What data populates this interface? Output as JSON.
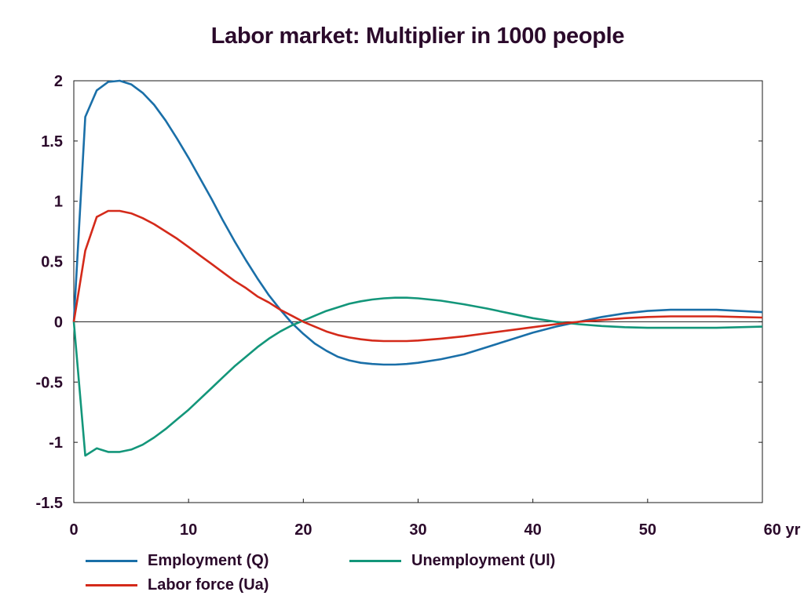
{
  "chart_data": {
    "type": "line",
    "title": "Labor market: Multiplier in 1000 people",
    "xlabel": "",
    "ylabel": "",
    "x_unit_label": "yr",
    "xlim": [
      0,
      60
    ],
    "ylim": [
      -1.5,
      2
    ],
    "x_ticks": [
      0,
      10,
      20,
      30,
      40,
      50,
      60
    ],
    "y_ticks": [
      -1.5,
      -1,
      -0.5,
      0,
      0.5,
      1,
      1.5,
      2
    ],
    "x_tick_labels": [
      "0",
      "10",
      "20",
      "30",
      "40",
      "50",
      "60 yr"
    ],
    "y_tick_labels": [
      "-1.5",
      "-1",
      "-0.5",
      "0",
      "0.5",
      "1",
      "1.5",
      "2"
    ],
    "grid": false,
    "legend_position": "bottom",
    "zero_line": true,
    "series": [
      {
        "name": "Employment (Q)",
        "color": "#1a6fa8",
        "x": [
          0,
          1,
          2,
          3,
          4,
          5,
          6,
          7,
          8,
          9,
          10,
          11,
          12,
          13,
          14,
          15,
          16,
          17,
          18,
          19,
          20,
          21,
          22,
          23,
          24,
          25,
          26,
          27,
          28,
          29,
          30,
          32,
          34,
          36,
          38,
          40,
          42,
          44,
          46,
          48,
          50,
          52,
          54,
          56,
          58,
          60
        ],
        "y": [
          0,
          1.7,
          1.92,
          1.99,
          2.0,
          1.97,
          1.9,
          1.8,
          1.67,
          1.52,
          1.36,
          1.19,
          1.02,
          0.84,
          0.67,
          0.51,
          0.36,
          0.22,
          0.1,
          -0.01,
          -0.1,
          -0.18,
          -0.24,
          -0.29,
          -0.32,
          -0.34,
          -0.35,
          -0.355,
          -0.355,
          -0.35,
          -0.34,
          -0.31,
          -0.27,
          -0.21,
          -0.15,
          -0.09,
          -0.04,
          0.0,
          0.04,
          0.07,
          0.09,
          0.1,
          0.1,
          0.1,
          0.09,
          0.08
        ]
      },
      {
        "name": "Unemployment (Ul)",
        "color": "#13967a",
        "x": [
          0,
          1,
          2,
          3,
          4,
          5,
          6,
          7,
          8,
          9,
          10,
          11,
          12,
          13,
          14,
          15,
          16,
          17,
          18,
          19,
          20,
          21,
          22,
          23,
          24,
          25,
          26,
          27,
          28,
          29,
          30,
          32,
          34,
          36,
          38,
          40,
          42,
          44,
          46,
          48,
          50,
          52,
          54,
          56,
          58,
          60
        ],
        "y": [
          0,
          -1.11,
          -1.05,
          -1.08,
          -1.08,
          -1.06,
          -1.02,
          -0.96,
          -0.89,
          -0.81,
          -0.73,
          -0.64,
          -0.55,
          -0.46,
          -0.37,
          -0.29,
          -0.21,
          -0.14,
          -0.08,
          -0.03,
          0.01,
          0.05,
          0.09,
          0.12,
          0.15,
          0.17,
          0.185,
          0.195,
          0.2,
          0.2,
          0.195,
          0.175,
          0.145,
          0.11,
          0.07,
          0.03,
          0.0,
          -0.02,
          -0.035,
          -0.045,
          -0.05,
          -0.05,
          -0.05,
          -0.05,
          -0.045,
          -0.04
        ]
      },
      {
        "name": "Labor force (Ua)",
        "color": "#d42a1a",
        "x": [
          0,
          1,
          2,
          3,
          4,
          5,
          6,
          7,
          8,
          9,
          10,
          11,
          12,
          13,
          14,
          15,
          16,
          17,
          18,
          19,
          20,
          21,
          22,
          23,
          24,
          25,
          26,
          27,
          28,
          29,
          30,
          32,
          34,
          36,
          38,
          40,
          42,
          44,
          46,
          48,
          50,
          52,
          54,
          56,
          58,
          60
        ],
        "y": [
          0,
          0.59,
          0.87,
          0.92,
          0.92,
          0.9,
          0.86,
          0.81,
          0.75,
          0.69,
          0.62,
          0.55,
          0.48,
          0.41,
          0.34,
          0.28,
          0.21,
          0.16,
          0.1,
          0.05,
          0.0,
          -0.04,
          -0.08,
          -0.11,
          -0.13,
          -0.145,
          -0.155,
          -0.16,
          -0.16,
          -0.16,
          -0.155,
          -0.14,
          -0.12,
          -0.095,
          -0.07,
          -0.045,
          -0.02,
          0.0,
          0.015,
          0.03,
          0.04,
          0.045,
          0.045,
          0.045,
          0.04,
          0.035
        ]
      }
    ]
  },
  "legend": {
    "items": [
      {
        "label": "Employment (Q)",
        "color": "#1a6fa8"
      },
      {
        "label": "Unemployment (Ul)",
        "color": "#13967a"
      },
      {
        "label": "Labor force (Ua)",
        "color": "#d42a1a"
      }
    ]
  }
}
